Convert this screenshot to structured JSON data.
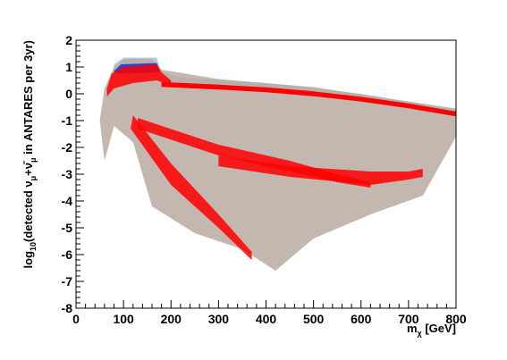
{
  "chart_data": {
    "type": "scatter",
    "title": "",
    "xlabel": "m",
    "xlabel_sub": "χ",
    "xlabel_unit": " [GeV]",
    "ylabel_parts": {
      "a": "log",
      "a_sub": "10",
      "b": "(detected ν",
      "b_sub": "μ",
      "c": "+ν̄",
      "c_sub": "μ",
      "d": " in ANTARES per 3yr)"
    },
    "xlim": [
      0,
      800
    ],
    "ylim": [
      -8,
      2
    ],
    "xticks": [
      0,
      100,
      200,
      300,
      400,
      500,
      600,
      700,
      800
    ],
    "yticks": [
      -8,
      -7,
      -6,
      -5,
      -4,
      -3,
      -2,
      -1,
      0,
      1,
      2
    ],
    "grid": false,
    "colors": {
      "grey": "#b8aaa2",
      "lightblue": "#a9c3d8",
      "red": "#ff0000",
      "blue": "#1133dd"
    },
    "series": [
      {
        "color": "lightblue",
        "kind": "band",
        "upper": [
          [
            80,
            1.1
          ],
          [
            100,
            1.35
          ],
          [
            170,
            1.35
          ],
          [
            180,
            0.8
          ],
          [
            220,
            0.6
          ],
          [
            400,
            0.4
          ],
          [
            600,
            0.0
          ],
          [
            800,
            -0.6
          ]
        ],
        "lower": [
          [
            80,
            0.5
          ],
          [
            170,
            0.5
          ],
          [
            220,
            0.3
          ],
          [
            400,
            0.1
          ],
          [
            600,
            -0.3
          ],
          [
            800,
            -0.85
          ]
        ]
      },
      {
        "color": "grey",
        "kind": "band",
        "upper": [
          [
            50,
            -1.0
          ],
          [
            60,
            0.2
          ],
          [
            80,
            1.0
          ],
          [
            100,
            1.3
          ],
          [
            160,
            1.3
          ],
          [
            180,
            0.9
          ],
          [
            300,
            0.55
          ],
          [
            500,
            0.25
          ],
          [
            800,
            -0.55
          ]
        ],
        "lower": [
          [
            60,
            -2.5
          ],
          [
            80,
            -1.2
          ],
          [
            120,
            -1.8
          ],
          [
            160,
            -4.2
          ],
          [
            250,
            -5.2
          ],
          [
            350,
            -5.8
          ],
          [
            420,
            -6.6
          ],
          [
            500,
            -5.4
          ],
          [
            620,
            -4.5
          ],
          [
            730,
            -3.8
          ],
          [
            800,
            -1.6
          ]
        ]
      },
      {
        "color": "blue",
        "kind": "band",
        "upper": [
          [
            80,
            0.85
          ],
          [
            95,
            1.1
          ],
          [
            170,
            1.15
          ],
          [
            175,
            0.9
          ]
        ],
        "lower": [
          [
            80,
            0.8
          ],
          [
            95,
            0.75
          ],
          [
            170,
            0.8
          ],
          [
            175,
            0.8
          ]
        ]
      },
      {
        "color": "red",
        "kind": "line",
        "width": 0.18,
        "points": [
          [
            180,
            0.35
          ],
          [
            300,
            0.25
          ],
          [
            400,
            0.15
          ],
          [
            500,
            0.0
          ],
          [
            600,
            -0.2
          ],
          [
            700,
            -0.45
          ],
          [
            800,
            -0.75
          ]
        ]
      },
      {
        "color": "red",
        "kind": "band",
        "upper": [
          [
            65,
            0.2
          ],
          [
            75,
            0.75
          ],
          [
            100,
            1.0
          ],
          [
            170,
            1.1
          ],
          [
            180,
            0.8
          ],
          [
            200,
            0.5
          ]
        ],
        "lower": [
          [
            65,
            -0.1
          ],
          [
            80,
            0.2
          ],
          [
            120,
            0.4
          ],
          [
            170,
            0.5
          ],
          [
            200,
            0.3
          ]
        ]
      },
      {
        "color": "red",
        "kind": "band",
        "upper": [
          [
            120,
            -0.8
          ],
          [
            200,
            -2.6
          ],
          [
            300,
            -4.5
          ],
          [
            370,
            -5.9
          ]
        ],
        "lower": [
          [
            115,
            -1.3
          ],
          [
            200,
            -3.4
          ],
          [
            300,
            -5.0
          ],
          [
            370,
            -6.2
          ]
        ]
      },
      {
        "color": "red",
        "kind": "band",
        "upper": [
          [
            130,
            -0.9
          ],
          [
            300,
            -1.9
          ],
          [
            450,
            -2.5
          ],
          [
            550,
            -3.0
          ],
          [
            620,
            -3.3
          ]
        ],
        "lower": [
          [
            130,
            -1.3
          ],
          [
            300,
            -2.3
          ],
          [
            450,
            -2.9
          ],
          [
            550,
            -3.3
          ],
          [
            620,
            -3.5
          ]
        ]
      },
      {
        "color": "red",
        "kind": "band",
        "upper": [
          [
            300,
            -2.3
          ],
          [
            450,
            -2.7
          ],
          [
            620,
            -2.9
          ],
          [
            700,
            -2.9
          ],
          [
            730,
            -2.8
          ]
        ],
        "lower": [
          [
            300,
            -2.7
          ],
          [
            450,
            -3.1
          ],
          [
            620,
            -3.4
          ],
          [
            700,
            -3.2
          ],
          [
            730,
            -3.1
          ]
        ]
      }
    ]
  }
}
